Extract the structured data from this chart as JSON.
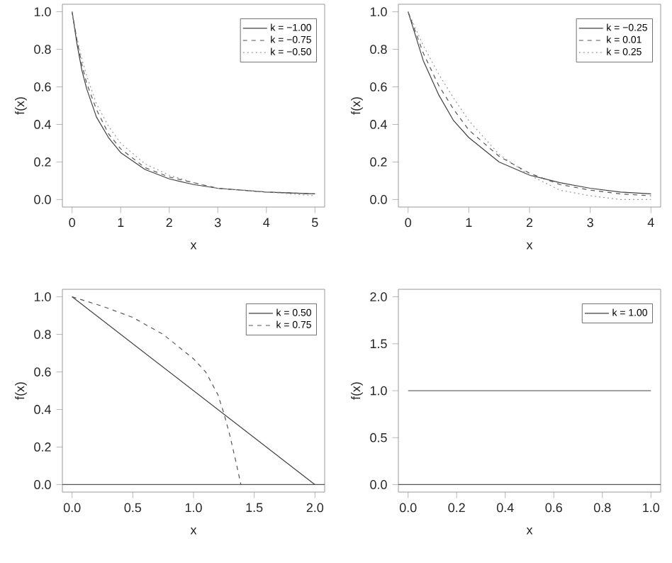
{
  "chart_data": [
    {
      "type": "line",
      "xlabel": "x",
      "ylabel": "f(x)",
      "xlim": [
        -0.2,
        5.2
      ],
      "ylim": [
        -0.04,
        1.04
      ],
      "xticks": [
        0,
        1,
        2,
        3,
        4,
        5
      ],
      "yticks": [
        {
          "value": 0,
          "label": "0.0"
        },
        {
          "value": 0.2,
          "label": "0.2"
        },
        {
          "value": 0.4,
          "label": "0.4"
        },
        {
          "value": 0.6,
          "label": "0.6"
        },
        {
          "value": 0.8,
          "label": "0.8"
        },
        {
          "value": 1,
          "label": "1.0"
        }
      ],
      "legend": "top right",
      "grid": false,
      "series": [
        {
          "name": "k = −1.00",
          "color": "#404040",
          "line_style": "solid",
          "x": [
            0,
            0.1,
            0.2,
            0.3,
            0.5,
            0.75,
            1,
            1.5,
            2,
            2.5,
            3,
            4,
            5
          ],
          "values": [
            1,
            0.83,
            0.69,
            0.59,
            0.44,
            0.33,
            0.25,
            0.16,
            0.11,
            0.08,
            0.06,
            0.04,
            0.03
          ]
        },
        {
          "name": "k = −0.75",
          "color": "#555555",
          "line_style": "dashed",
          "x": [
            0,
            0.1,
            0.2,
            0.3,
            0.5,
            0.75,
            1,
            1.5,
            2,
            2.5,
            3,
            4,
            5
          ],
          "values": [
            1,
            0.85,
            0.72,
            0.62,
            0.48,
            0.35,
            0.27,
            0.17,
            0.12,
            0.09,
            0.06,
            0.04,
            0.03
          ]
        },
        {
          "name": "k = −0.50",
          "color": "#999999",
          "line_style": "dotted",
          "x": [
            0,
            0.1,
            0.2,
            0.3,
            0.5,
            0.75,
            1,
            1.5,
            2,
            2.5,
            3,
            4,
            5
          ],
          "values": [
            1,
            0.86,
            0.75,
            0.66,
            0.51,
            0.39,
            0.3,
            0.19,
            0.13,
            0.09,
            0.06,
            0.04,
            0.02
          ]
        }
      ]
    },
    {
      "type": "line",
      "xlabel": "x",
      "ylabel": "f(x)",
      "xlim": [
        -0.16,
        4.16
      ],
      "ylim": [
        -0.04,
        1.04
      ],
      "xticks": [
        0,
        1,
        2,
        3,
        4
      ],
      "yticks": [
        {
          "value": 0,
          "label": "0.0"
        },
        {
          "value": 0.2,
          "label": "0.2"
        },
        {
          "value": 0.4,
          "label": "0.4"
        },
        {
          "value": 0.6,
          "label": "0.6"
        },
        {
          "value": 0.8,
          "label": "0.8"
        },
        {
          "value": 1,
          "label": "1.0"
        }
      ],
      "legend": "top right",
      "grid": false,
      "series": [
        {
          "name": "k = −0.25",
          "color": "#404040",
          "line_style": "solid",
          "x": [
            0,
            0.25,
            0.5,
            0.75,
            1,
            1.5,
            2,
            2.5,
            3,
            3.5,
            4
          ],
          "values": [
            1,
            0.74,
            0.56,
            0.42,
            0.33,
            0.2,
            0.13,
            0.09,
            0.06,
            0.04,
            0.03
          ]
        },
        {
          "name": "k = 0.01",
          "color": "#555555",
          "line_style": "dashed",
          "x": [
            0,
            0.25,
            0.5,
            0.75,
            1,
            1.5,
            2,
            2.5,
            3,
            3.5,
            4
          ],
          "values": [
            1,
            0.78,
            0.61,
            0.48,
            0.37,
            0.23,
            0.14,
            0.08,
            0.05,
            0.03,
            0.02
          ]
        },
        {
          "name": "k = 0.25",
          "color": "#999999",
          "line_style": "dotted",
          "x": [
            0,
            0.25,
            0.5,
            0.75,
            1,
            1.5,
            2,
            2.5,
            3,
            3.5,
            4
          ],
          "values": [
            1,
            0.82,
            0.67,
            0.54,
            0.42,
            0.24,
            0.13,
            0.05,
            0.02,
            0,
            0
          ]
        }
      ]
    },
    {
      "type": "line",
      "xlabel": "x",
      "ylabel": "f(x)",
      "xlim": [
        -0.08,
        2.08
      ],
      "ylim": [
        -0.04,
        1.04
      ],
      "xticks": [
        {
          "value": 0,
          "label": "0.0"
        },
        {
          "value": 0.5,
          "label": "0.5"
        },
        {
          "value": 1,
          "label": "1.0"
        },
        {
          "value": 1.5,
          "label": "1.5"
        },
        {
          "value": 2,
          "label": "2.0"
        }
      ],
      "yticks": [
        {
          "value": 0,
          "label": "0.0"
        },
        {
          "value": 0.2,
          "label": "0.2"
        },
        {
          "value": 0.4,
          "label": "0.4"
        },
        {
          "value": 0.6,
          "label": "0.6"
        },
        {
          "value": 0.8,
          "label": "0.8"
        },
        {
          "value": 1,
          "label": "1.0"
        }
      ],
      "legend": "top right",
      "grid": false,
      "ref_lines": [
        {
          "axis": "y",
          "value": 0,
          "color": "#555555"
        }
      ],
      "series": [
        {
          "name": "k = 0.50",
          "color": "#404040",
          "line_style": "solid",
          "x": [
            0,
            2
          ],
          "values": [
            1,
            0
          ]
        },
        {
          "name": "k = 0.75",
          "color": "#555555",
          "line_style": "dashed",
          "x": [
            0,
            0.25,
            0.5,
            0.75,
            1,
            1.1,
            1.2,
            1.25,
            1.3,
            1.35,
            1.39
          ],
          "values": [
            1,
            0.95,
            0.89,
            0.8,
            0.67,
            0.6,
            0.48,
            0.38,
            0.26,
            0.12,
            0
          ]
        }
      ]
    },
    {
      "type": "line",
      "xlabel": "x",
      "ylabel": "f(x)",
      "xlim": [
        -0.04,
        1.04
      ],
      "ylim": [
        -0.08,
        2.08
      ],
      "xticks": [
        {
          "value": 0,
          "label": "0.0"
        },
        {
          "value": 0.2,
          "label": "0.2"
        },
        {
          "value": 0.4,
          "label": "0.4"
        },
        {
          "value": 0.6,
          "label": "0.6"
        },
        {
          "value": 0.8,
          "label": "0.8"
        },
        {
          "value": 1,
          "label": "1.0"
        }
      ],
      "yticks": [
        {
          "value": 0,
          "label": "0.0"
        },
        {
          "value": 0.5,
          "label": "0.5"
        },
        {
          "value": 1,
          "label": "1.0"
        },
        {
          "value": 1.5,
          "label": "1.5"
        },
        {
          "value": 2,
          "label": "2.0"
        }
      ],
      "legend": "top right",
      "grid": false,
      "ref_lines": [
        {
          "axis": "y",
          "value": 0,
          "color": "#555555"
        }
      ],
      "series": [
        {
          "name": "k = 1.00",
          "color": "#404040",
          "line_style": "solid",
          "x": [
            0,
            1
          ],
          "values": [
            1,
            1
          ]
        }
      ]
    }
  ]
}
